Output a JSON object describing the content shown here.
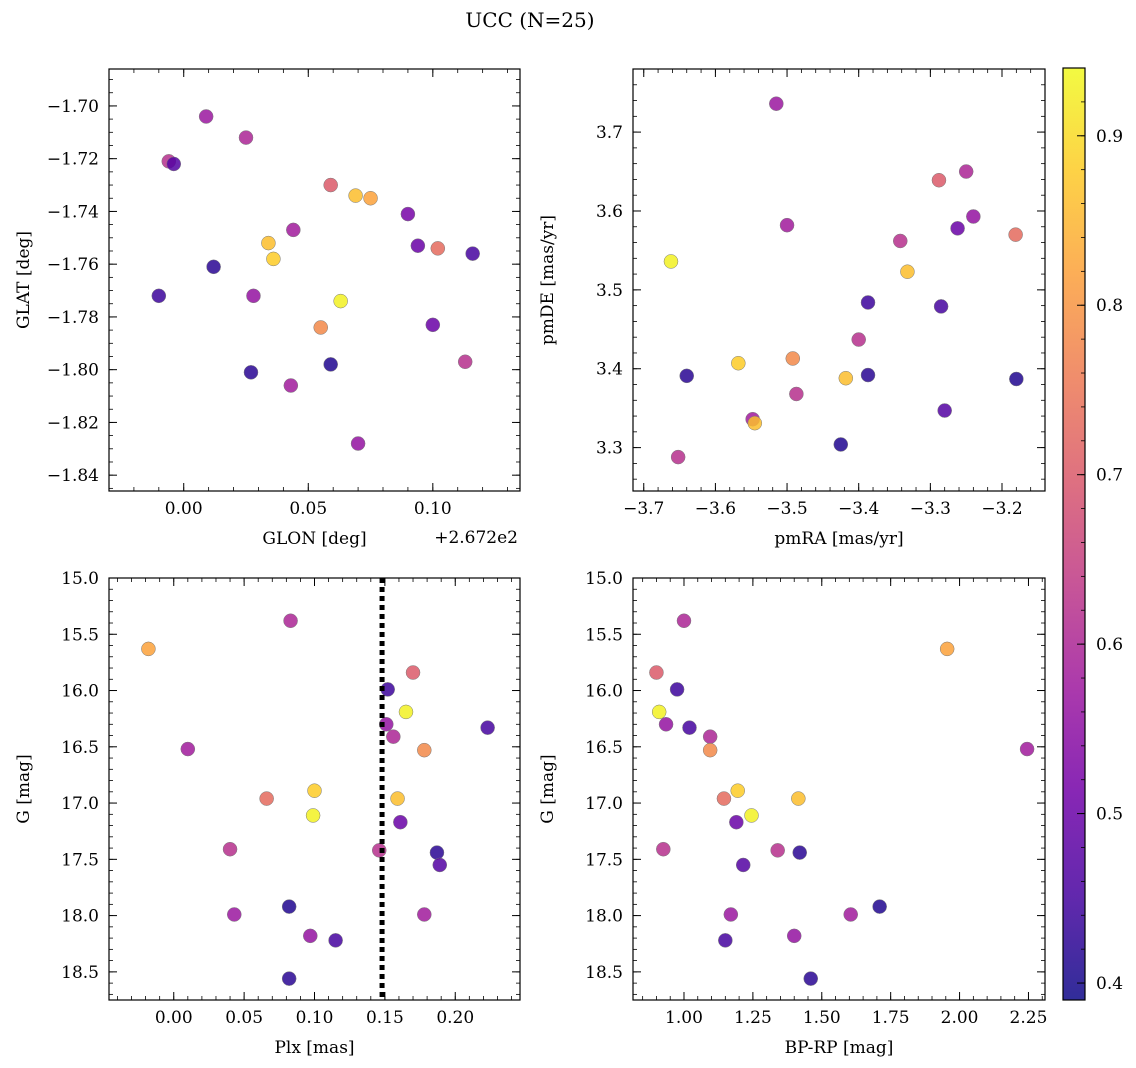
{
  "figure_title": "UCC (N=25)",
  "colorbar": {
    "colors": [
      "#0d0887",
      "#46039f",
      "#7201a8",
      "#9c179e",
      "#bd3786",
      "#d8576b",
      "#ed7953",
      "#fb9f3a",
      "#fdca26",
      "#f0f921"
    ],
    "vmin": 0.39,
    "vmax": 0.94,
    "ticks": [
      0.4,
      0.5,
      0.6,
      0.7,
      0.8,
      0.9
    ],
    "tick_labels": [
      "0.4",
      "0.5",
      "0.6",
      "0.7",
      "0.8",
      "0.9"
    ]
  },
  "chart_data": [
    {
      "id": "p1",
      "type": "scatter",
      "xlabel": "GLON [deg]",
      "ylabel": "GLAT [deg]",
      "offset_text": "+2.672e2",
      "xlim": [
        -0.03,
        0.135
      ],
      "ylim": [
        -1.846,
        -1.686
      ],
      "xticks": [
        0,
        0.05,
        0.1
      ],
      "xtick_labels": [
        "0.00",
        "0.05",
        "0.10"
      ],
      "yticks": [
        -1.84,
        -1.82,
        -1.8,
        -1.78,
        -1.76,
        -1.74,
        -1.72,
        -1.7
      ],
      "ytick_labels": [
        "−1.84",
        "−1.82",
        "−1.80",
        "−1.78",
        "−1.76",
        "−1.74",
        "−1.72",
        "−1.70"
      ],
      "x_minor": 0.01,
      "y_minor": 0.005,
      "invert_y": false,
      "vline": null,
      "points": [
        {
          "x": 0.009,
          "y": -1.704,
          "c": 0.57
        },
        {
          "x": 0.025,
          "y": -1.712,
          "c": 0.6
        },
        {
          "x": -0.006,
          "y": -1.721,
          "c": 0.62
        },
        {
          "x": -0.004,
          "y": -1.722,
          "c": 0.47
        },
        {
          "x": 0.059,
          "y": -1.73,
          "c": 0.7
        },
        {
          "x": 0.069,
          "y": -1.734,
          "c": 0.86
        },
        {
          "x": 0.075,
          "y": -1.735,
          "c": 0.82
        },
        {
          "x": 0.09,
          "y": -1.741,
          "c": 0.52
        },
        {
          "x": 0.044,
          "y": -1.747,
          "c": 0.58
        },
        {
          "x": 0.034,
          "y": -1.752,
          "c": 0.86
        },
        {
          "x": 0.094,
          "y": -1.753,
          "c": 0.5
        },
        {
          "x": 0.102,
          "y": -1.754,
          "c": 0.73
        },
        {
          "x": 0.036,
          "y": -1.758,
          "c": 0.88
        },
        {
          "x": 0.116,
          "y": -1.756,
          "c": 0.45
        },
        {
          "x": 0.012,
          "y": -1.761,
          "c": 0.42
        },
        {
          "x": -0.01,
          "y": -1.772,
          "c": 0.44
        },
        {
          "x": 0.028,
          "y": -1.772,
          "c": 0.56
        },
        {
          "x": 0.063,
          "y": -1.774,
          "c": 0.93
        },
        {
          "x": 0.055,
          "y": -1.784,
          "c": 0.78
        },
        {
          "x": 0.1,
          "y": -1.783,
          "c": 0.5
        },
        {
          "x": 0.027,
          "y": -1.801,
          "c": 0.42
        },
        {
          "x": 0.059,
          "y": -1.798,
          "c": 0.41
        },
        {
          "x": 0.113,
          "y": -1.797,
          "c": 0.62
        },
        {
          "x": 0.043,
          "y": -1.806,
          "c": 0.58
        },
        {
          "x": 0.07,
          "y": -1.828,
          "c": 0.56
        }
      ]
    },
    {
      "id": "p2",
      "type": "scatter",
      "xlabel": "pmRA [mas/yr]",
      "ylabel": "pmDE [mas/yr]",
      "xlim": [
        -3.715,
        -3.14
      ],
      "ylim": [
        3.245,
        3.78
      ],
      "xticks": [
        -3.7,
        -3.6,
        -3.5,
        -3.4,
        -3.3,
        -3.2
      ],
      "xtick_labels": [
        "−3.7",
        "−3.6",
        "−3.5",
        "−3.4",
        "−3.3",
        "−3.2"
      ],
      "yticks": [
        3.3,
        3.4,
        3.5,
        3.6,
        3.7
      ],
      "ytick_labels": [
        "3.3",
        "3.4",
        "3.5",
        "3.6",
        "3.7"
      ],
      "x_minor": 0.02,
      "y_minor": 0.02,
      "invert_y": false,
      "vline": null,
      "points": [
        {
          "x": -3.515,
          "y": 3.736,
          "c": 0.57
        },
        {
          "x": -3.25,
          "y": 3.65,
          "c": 0.6
        },
        {
          "x": -3.288,
          "y": 3.639,
          "c": 0.7
        },
        {
          "x": -3.24,
          "y": 3.593,
          "c": 0.56
        },
        {
          "x": -3.5,
          "y": 3.582,
          "c": 0.58
        },
        {
          "x": -3.262,
          "y": 3.578,
          "c": 0.5
        },
        {
          "x": -3.181,
          "y": 3.57,
          "c": 0.73
        },
        {
          "x": -3.342,
          "y": 3.562,
          "c": 0.62
        },
        {
          "x": -3.662,
          "y": 3.536,
          "c": 0.93
        },
        {
          "x": -3.332,
          "y": 3.523,
          "c": 0.86
        },
        {
          "x": -3.387,
          "y": 3.484,
          "c": 0.44
        },
        {
          "x": -3.285,
          "y": 3.479,
          "c": 0.45
        },
        {
          "x": -3.4,
          "y": 3.437,
          "c": 0.62
        },
        {
          "x": -3.492,
          "y": 3.413,
          "c": 0.78
        },
        {
          "x": -3.568,
          "y": 3.407,
          "c": 0.88
        },
        {
          "x": -3.64,
          "y": 3.391,
          "c": 0.42
        },
        {
          "x": -3.387,
          "y": 3.392,
          "c": 0.42
        },
        {
          "x": -3.418,
          "y": 3.388,
          "c": 0.86
        },
        {
          "x": -3.18,
          "y": 3.387,
          "c": 0.41
        },
        {
          "x": -3.487,
          "y": 3.368,
          "c": 0.62
        },
        {
          "x": -3.28,
          "y": 3.347,
          "c": 0.47
        },
        {
          "x": -3.548,
          "y": 3.336,
          "c": 0.58
        },
        {
          "x": -3.545,
          "y": 3.331,
          "c": 0.86
        },
        {
          "x": -3.425,
          "y": 3.304,
          "c": 0.41
        },
        {
          "x": -3.652,
          "y": 3.288,
          "c": 0.62
        }
      ]
    },
    {
      "id": "p3",
      "type": "scatter",
      "xlabel": "Plx [mas]",
      "ylabel": "G [mag]",
      "xlim": [
        -0.046,
        0.246
      ],
      "ylim": [
        15.0,
        18.75
      ],
      "xticks": [
        0,
        0.05,
        0.1,
        0.15,
        0.2
      ],
      "xtick_labels": [
        "0.00",
        "0.05",
        "0.10",
        "0.15",
        "0.20"
      ],
      "yticks": [
        15.0,
        15.5,
        16.0,
        16.5,
        17.0,
        17.5,
        18.0,
        18.5
      ],
      "ytick_labels": [
        "15.0",
        "15.5",
        "16.0",
        "16.5",
        "17.0",
        "17.5",
        "18.0",
        "18.5"
      ],
      "x_minor": 0.01,
      "y_minor": 0.1,
      "invert_y": true,
      "vline": {
        "x": 0.148,
        "style": "dotted"
      },
      "points": [
        {
          "x": 0.083,
          "y": 15.38,
          "c": 0.6
        },
        {
          "x": -0.018,
          "y": 15.63,
          "c": 0.82
        },
        {
          "x": 0.17,
          "y": 15.84,
          "c": 0.7
        },
        {
          "x": 0.152,
          "y": 15.99,
          "c": 0.44
        },
        {
          "x": 0.165,
          "y": 16.19,
          "c": 0.93
        },
        {
          "x": 0.151,
          "y": 16.3,
          "c": 0.56
        },
        {
          "x": 0.223,
          "y": 16.33,
          "c": 0.45
        },
        {
          "x": 0.156,
          "y": 16.41,
          "c": 0.6
        },
        {
          "x": 0.01,
          "y": 16.52,
          "c": 0.58
        },
        {
          "x": 0.178,
          "y": 16.53,
          "c": 0.78
        },
        {
          "x": 0.1,
          "y": 16.89,
          "c": 0.88
        },
        {
          "x": 0.066,
          "y": 16.96,
          "c": 0.73
        },
        {
          "x": 0.159,
          "y": 16.96,
          "c": 0.86
        },
        {
          "x": 0.099,
          "y": 17.11,
          "c": 0.93
        },
        {
          "x": 0.161,
          "y": 17.17,
          "c": 0.5
        },
        {
          "x": 0.04,
          "y": 17.41,
          "c": 0.62
        },
        {
          "x": 0.146,
          "y": 17.42,
          "c": 0.62
        },
        {
          "x": 0.187,
          "y": 17.44,
          "c": 0.42
        },
        {
          "x": 0.189,
          "y": 17.55,
          "c": 0.47
        },
        {
          "x": 0.082,
          "y": 17.92,
          "c": 0.41
        },
        {
          "x": 0.043,
          "y": 17.99,
          "c": 0.57
        },
        {
          "x": 0.178,
          "y": 17.99,
          "c": 0.58
        },
        {
          "x": 0.097,
          "y": 18.18,
          "c": 0.56
        },
        {
          "x": 0.115,
          "y": 18.22,
          "c": 0.45
        },
        {
          "x": 0.082,
          "y": 18.56,
          "c": 0.42
        }
      ]
    },
    {
      "id": "p4",
      "type": "scatter",
      "xlabel": "BP-RP [mag]",
      "ylabel": "G [mag]",
      "xlim": [
        0.815,
        2.31
      ],
      "ylim": [
        15.0,
        18.75
      ],
      "xticks": [
        1.0,
        1.25,
        1.5,
        1.75,
        2.0,
        2.25
      ],
      "xtick_labels": [
        "1.00",
        "1.25",
        "1.50",
        "1.75",
        "2.00",
        "2.25"
      ],
      "yticks": [
        15.0,
        15.5,
        16.0,
        16.5,
        17.0,
        17.5,
        18.0,
        18.5
      ],
      "ytick_labels": [
        "15.0",
        "15.5",
        "16.0",
        "16.5",
        "17.0",
        "17.5",
        "18.0",
        "18.5"
      ],
      "x_minor": 0.05,
      "y_minor": 0.1,
      "invert_y": true,
      "vline": null,
      "points": [
        {
          "x": 1.0,
          "y": 15.38,
          "c": 0.6
        },
        {
          "x": 1.955,
          "y": 15.63,
          "c": 0.82
        },
        {
          "x": 0.9,
          "y": 15.84,
          "c": 0.7
        },
        {
          "x": 0.975,
          "y": 15.99,
          "c": 0.44
        },
        {
          "x": 0.91,
          "y": 16.19,
          "c": 0.93
        },
        {
          "x": 0.935,
          "y": 16.3,
          "c": 0.56
        },
        {
          "x": 1.02,
          "y": 16.33,
          "c": 0.45
        },
        {
          "x": 1.095,
          "y": 16.41,
          "c": 0.6
        },
        {
          "x": 1.095,
          "y": 16.53,
          "c": 0.78
        },
        {
          "x": 2.245,
          "y": 16.52,
          "c": 0.58
        },
        {
          "x": 1.195,
          "y": 16.89,
          "c": 0.88
        },
        {
          "x": 1.145,
          "y": 16.96,
          "c": 0.73
        },
        {
          "x": 1.415,
          "y": 16.96,
          "c": 0.86
        },
        {
          "x": 1.245,
          "y": 17.11,
          "c": 0.93
        },
        {
          "x": 1.19,
          "y": 17.17,
          "c": 0.5
        },
        {
          "x": 0.925,
          "y": 17.41,
          "c": 0.62
        },
        {
          "x": 1.34,
          "y": 17.42,
          "c": 0.62
        },
        {
          "x": 1.42,
          "y": 17.44,
          "c": 0.42
        },
        {
          "x": 1.215,
          "y": 17.55,
          "c": 0.47
        },
        {
          "x": 1.71,
          "y": 17.92,
          "c": 0.41
        },
        {
          "x": 1.17,
          "y": 17.99,
          "c": 0.57
        },
        {
          "x": 1.605,
          "y": 17.99,
          "c": 0.58
        },
        {
          "x": 1.4,
          "y": 18.18,
          "c": 0.56
        },
        {
          "x": 1.15,
          "y": 18.22,
          "c": 0.45
        },
        {
          "x": 1.46,
          "y": 18.56,
          "c": 0.42
        }
      ]
    }
  ]
}
